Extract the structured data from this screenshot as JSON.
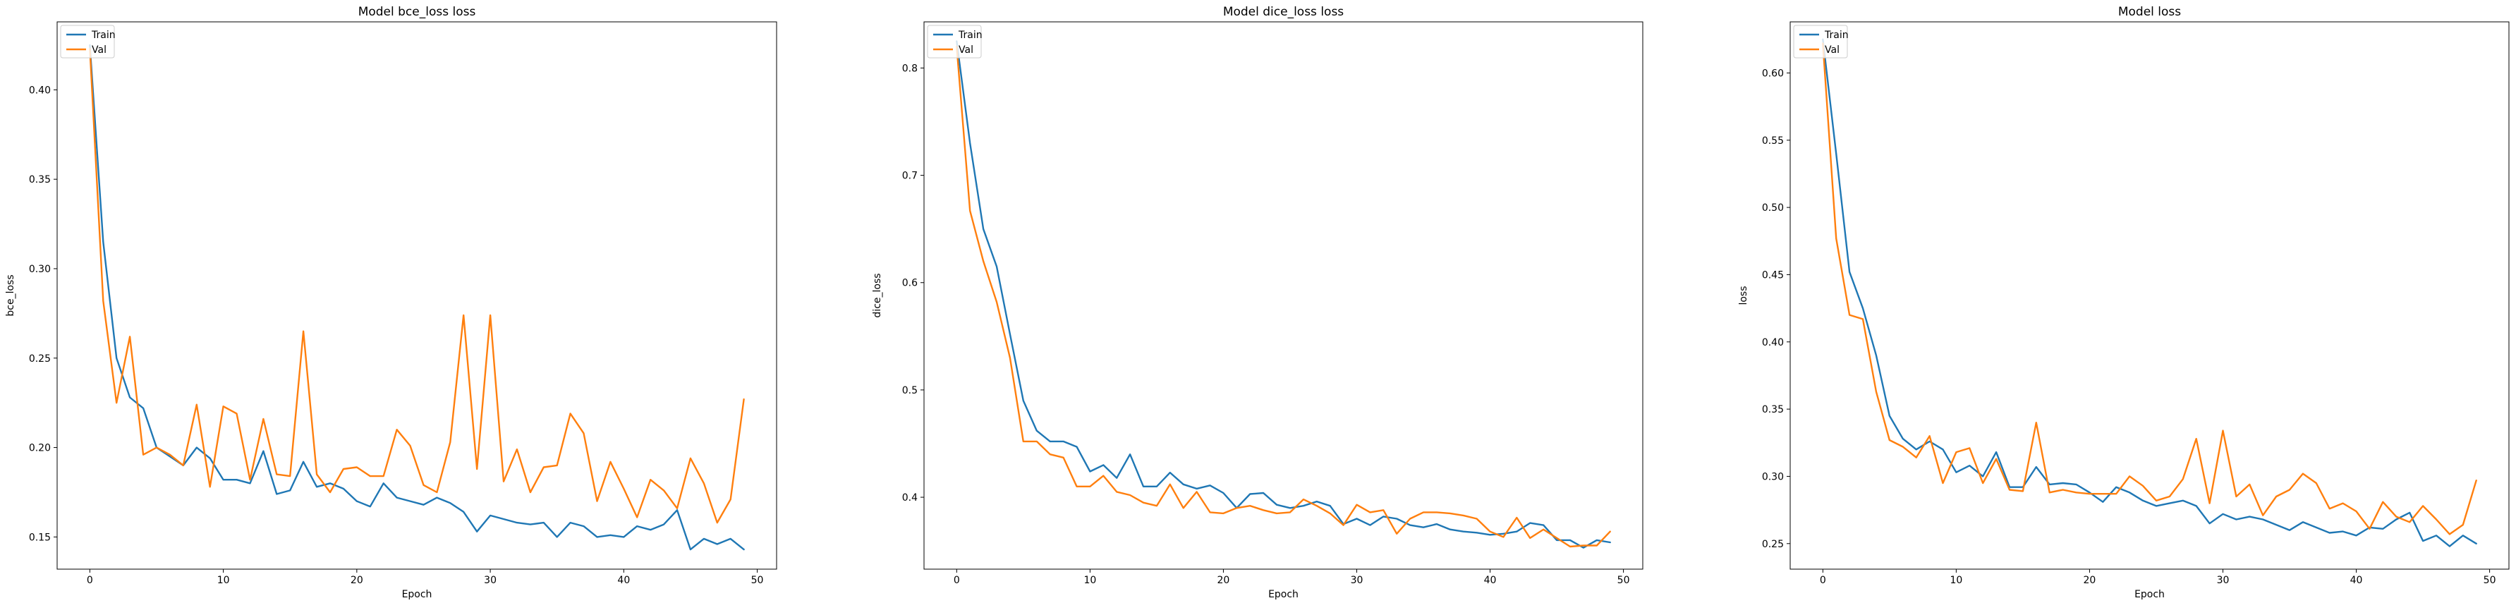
{
  "colors": {
    "train": "#1f77b4",
    "val": "#ff7f0e"
  },
  "chart_data": [
    {
      "type": "line",
      "title": "Model bce_loss loss",
      "xlabel": "Epoch",
      "ylabel": "bce_loss",
      "xlim": [
        -2.45,
        51.45
      ],
      "ylim": [
        0.132,
        0.438
      ],
      "xticks": [
        0,
        10,
        20,
        30,
        40,
        50
      ],
      "yticks": [
        0.15,
        0.2,
        0.25,
        0.3,
        0.35,
        0.4
      ],
      "ytick_labels": [
        "0.15",
        "0.20",
        "0.25",
        "0.30",
        "0.35",
        "0.40"
      ],
      "legend": {
        "placement": "upper-left",
        "entries": [
          "Train",
          "Val"
        ]
      },
      "series": [
        {
          "name": "Train",
          "x": [
            0,
            1,
            2,
            3,
            4,
            5,
            6,
            7,
            8,
            9,
            10,
            11,
            12,
            13,
            14,
            15,
            16,
            17,
            18,
            19,
            20,
            21,
            22,
            23,
            24,
            25,
            26,
            27,
            28,
            29,
            30,
            31,
            32,
            33,
            34,
            35,
            36,
            37,
            38,
            39,
            40,
            41,
            42,
            43,
            44,
            45,
            46,
            47,
            48,
            49
          ],
          "y": [
            0.425,
            0.315,
            0.25,
            0.228,
            0.222,
            0.2,
            0.195,
            0.19,
            0.2,
            0.194,
            0.182,
            0.182,
            0.18,
            0.198,
            0.174,
            0.176,
            0.192,
            0.178,
            0.18,
            0.177,
            0.17,
            0.167,
            0.18,
            0.172,
            0.17,
            0.168,
            0.172,
            0.169,
            0.164,
            0.153,
            0.162,
            0.16,
            0.158,
            0.157,
            0.158,
            0.15,
            0.158,
            0.156,
            0.15,
            0.151,
            0.15,
            0.156,
            0.154,
            0.157,
            0.165,
            0.143,
            0.149,
            0.146,
            0.149,
            0.143
          ]
        },
        {
          "name": "Val",
          "x": [
            0,
            1,
            2,
            3,
            4,
            5,
            6,
            7,
            8,
            9,
            10,
            11,
            12,
            13,
            14,
            15,
            16,
            17,
            18,
            19,
            20,
            21,
            22,
            23,
            24,
            25,
            26,
            27,
            28,
            29,
            30,
            31,
            32,
            33,
            34,
            35,
            36,
            37,
            38,
            39,
            40,
            41,
            42,
            43,
            44,
            45,
            46,
            47,
            48,
            49
          ],
          "y": [
            0.423,
            0.282,
            0.225,
            0.262,
            0.196,
            0.2,
            0.196,
            0.19,
            0.224,
            0.178,
            0.223,
            0.219,
            0.182,
            0.216,
            0.185,
            0.184,
            0.265,
            0.185,
            0.175,
            0.188,
            0.189,
            0.184,
            0.184,
            0.21,
            0.201,
            0.179,
            0.175,
            0.203,
            0.274,
            0.188,
            0.274,
            0.181,
            0.199,
            0.175,
            0.189,
            0.19,
            0.219,
            0.208,
            0.17,
            0.192,
            0.177,
            0.161,
            0.182,
            0.176,
            0.166,
            0.194,
            0.18,
            0.158,
            0.171,
            0.227
          ]
        }
      ]
    },
    {
      "type": "line",
      "title": "Model dice_loss loss",
      "xlabel": "Epoch",
      "ylabel": "dice_loss",
      "xlim": [
        -2.45,
        51.45
      ],
      "ylim": [
        0.333,
        0.843
      ],
      "xticks": [
        0,
        10,
        20,
        30,
        40,
        50
      ],
      "yticks": [
        0.4,
        0.5,
        0.6,
        0.7,
        0.8
      ],
      "ytick_labels": [
        "0.4",
        "0.5",
        "0.6",
        "0.7",
        "0.8"
      ],
      "legend": {
        "placement": "upper-left",
        "entries": [
          "Train",
          "Val"
        ]
      },
      "series": [
        {
          "name": "Train",
          "x": [
            0,
            1,
            2,
            3,
            4,
            5,
            6,
            7,
            8,
            9,
            10,
            11,
            12,
            13,
            14,
            15,
            16,
            17,
            18,
            19,
            20,
            21,
            22,
            23,
            24,
            25,
            26,
            27,
            28,
            29,
            30,
            31,
            32,
            33,
            34,
            35,
            36,
            37,
            38,
            39,
            40,
            41,
            42,
            43,
            44,
            45,
            46,
            47,
            48,
            49
          ],
          "y": [
            0.825,
            0.73,
            0.65,
            0.615,
            0.552,
            0.49,
            0.462,
            0.452,
            0.452,
            0.447,
            0.424,
            0.43,
            0.418,
            0.44,
            0.41,
            0.41,
            0.423,
            0.412,
            0.408,
            0.411,
            0.404,
            0.39,
            0.403,
            0.404,
            0.393,
            0.39,
            0.392,
            0.396,
            0.392,
            0.375,
            0.38,
            0.374,
            0.382,
            0.38,
            0.374,
            0.372,
            0.375,
            0.37,
            0.368,
            0.367,
            0.365,
            0.366,
            0.368,
            0.376,
            0.374,
            0.36,
            0.36,
            0.353,
            0.36,
            0.358
          ]
        },
        {
          "name": "Val",
          "x": [
            0,
            1,
            2,
            3,
            4,
            5,
            6,
            7,
            8,
            9,
            10,
            11,
            12,
            13,
            14,
            15,
            16,
            17,
            18,
            19,
            20,
            21,
            22,
            23,
            24,
            25,
            26,
            27,
            28,
            29,
            30,
            31,
            32,
            33,
            34,
            35,
            36,
            37,
            38,
            39,
            40,
            41,
            42,
            43,
            44,
            45,
            46,
            47,
            48,
            49
          ],
          "y": [
            0.82,
            0.667,
            0.62,
            0.582,
            0.53,
            0.452,
            0.452,
            0.44,
            0.437,
            0.41,
            0.41,
            0.42,
            0.405,
            0.402,
            0.395,
            0.392,
            0.412,
            0.39,
            0.405,
            0.386,
            0.385,
            0.39,
            0.392,
            0.388,
            0.385,
            0.386,
            0.398,
            0.392,
            0.385,
            0.374,
            0.393,
            0.386,
            0.388,
            0.366,
            0.38,
            0.386,
            0.386,
            0.385,
            0.383,
            0.38,
            0.368,
            0.363,
            0.381,
            0.362,
            0.37,
            0.362,
            0.354,
            0.355,
            0.355,
            0.368
          ]
        }
      ]
    },
    {
      "type": "line",
      "title": "Model loss",
      "xlabel": "Epoch",
      "ylabel": "loss",
      "xlim": [
        -2.45,
        51.45
      ],
      "ylim": [
        0.231,
        0.638
      ],
      "xticks": [
        0,
        10,
        20,
        30,
        40,
        50
      ],
      "yticks": [
        0.25,
        0.3,
        0.35,
        0.4,
        0.45,
        0.5,
        0.55,
        0.6
      ],
      "ytick_labels": [
        "0.25",
        "0.30",
        "0.35",
        "0.40",
        "0.45",
        "0.50",
        "0.55",
        "0.60"
      ],
      "legend": {
        "placement": "upper-left",
        "entries": [
          "Train",
          "Val"
        ]
      },
      "series": [
        {
          "name": "Train",
          "x": [
            0,
            1,
            2,
            3,
            4,
            5,
            6,
            7,
            8,
            9,
            10,
            11,
            12,
            13,
            14,
            15,
            16,
            17,
            18,
            19,
            20,
            21,
            22,
            23,
            24,
            25,
            26,
            27,
            28,
            29,
            30,
            31,
            32,
            33,
            34,
            35,
            36,
            37,
            38,
            39,
            40,
            41,
            42,
            43,
            44,
            45,
            46,
            47,
            48,
            49
          ],
          "y": [
            0.625,
            0.54,
            0.452,
            0.425,
            0.39,
            0.345,
            0.328,
            0.32,
            0.326,
            0.32,
            0.303,
            0.308,
            0.3,
            0.318,
            0.292,
            0.292,
            0.307,
            0.294,
            0.295,
            0.294,
            0.288,
            0.281,
            0.292,
            0.288,
            0.282,
            0.278,
            0.28,
            0.282,
            0.278,
            0.265,
            0.272,
            0.268,
            0.27,
            0.268,
            0.264,
            0.26,
            0.266,
            0.262,
            0.258,
            0.259,
            0.256,
            0.262,
            0.261,
            0.268,
            0.273,
            0.252,
            0.256,
            0.248,
            0.256,
            0.25
          ]
        },
        {
          "name": "Val",
          "x": [
            0,
            1,
            2,
            3,
            4,
            5,
            6,
            7,
            8,
            9,
            10,
            11,
            12,
            13,
            14,
            15,
            16,
            17,
            18,
            19,
            20,
            21,
            22,
            23,
            24,
            25,
            26,
            27,
            28,
            29,
            30,
            31,
            32,
            33,
            34,
            35,
            36,
            37,
            38,
            39,
            40,
            41,
            42,
            43,
            44,
            45,
            46,
            47,
            48,
            49
          ],
          "y": [
            0.622,
            0.477,
            0.42,
            0.417,
            0.363,
            0.327,
            0.322,
            0.314,
            0.33,
            0.295,
            0.318,
            0.321,
            0.295,
            0.313,
            0.29,
            0.289,
            0.34,
            0.288,
            0.29,
            0.288,
            0.287,
            0.287,
            0.287,
            0.3,
            0.293,
            0.282,
            0.285,
            0.298,
            0.328,
            0.28,
            0.334,
            0.285,
            0.294,
            0.271,
            0.285,
            0.29,
            0.302,
            0.295,
            0.276,
            0.28,
            0.274,
            0.261,
            0.281,
            0.27,
            0.266,
            0.278,
            0.268,
            0.257,
            0.264,
            0.297
          ]
        }
      ]
    }
  ]
}
